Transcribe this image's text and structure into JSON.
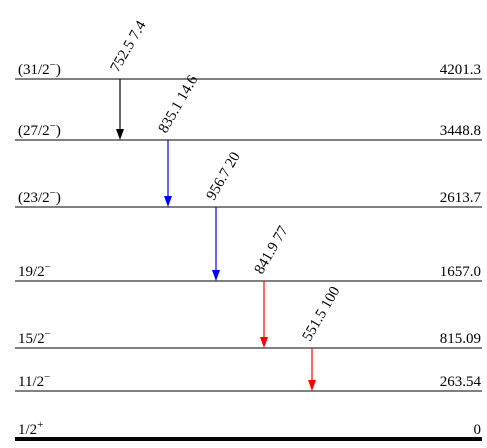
{
  "levels": [
    {
      "spin": "(31/2",
      "parity": "−",
      "close": ")",
      "energy": "4201.3"
    },
    {
      "spin": "(27/2",
      "parity": "−",
      "close": ")",
      "energy": "3448.8"
    },
    {
      "spin": "(23/2",
      "parity": "−",
      "close": ")",
      "energy": "2613.7"
    },
    {
      "spin": "19/2",
      "parity": "−",
      "close": "",
      "energy": "1657.0"
    },
    {
      "spin": "15/2",
      "parity": "−",
      "close": "",
      "energy": "815.09"
    },
    {
      "spin": "11/2",
      "parity": "−",
      "close": "",
      "energy": "263.54"
    },
    {
      "spin": "1/2",
      "parity": "+",
      "close": "",
      "energy": "0"
    }
  ],
  "transitions": [
    {
      "from": "4201.3",
      "to": "3448.8",
      "label": "752.5 7.4",
      "color": "#000000"
    },
    {
      "from": "3448.8",
      "to": "2613.7",
      "label": "835.1 14.6",
      "color": "#0000ff"
    },
    {
      "from": "2613.7",
      "to": "1657.0",
      "label": "956.7 20",
      "color": "#0000ff"
    },
    {
      "from": "1657.0",
      "to": "815.09",
      "label": "841.9 77",
      "color": "#ff0000"
    },
    {
      "from": "815.09",
      "to": "263.54",
      "label": "551.5 100",
      "color": "#ff0000"
    }
  ]
}
